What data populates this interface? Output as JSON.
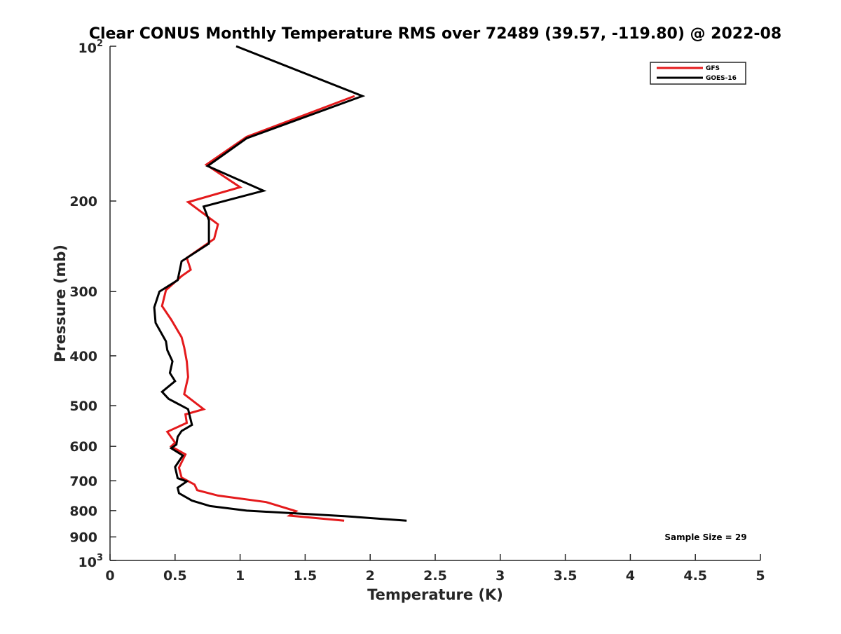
{
  "chart_data": {
    "type": "line",
    "title": "Clear CONUS Monthly Temperature RMS over 72489 (39.57, -119.80) @ 2022-08",
    "xlabel": "Temperature (K)",
    "ylabel": "Pressure (mb)",
    "xlim": [
      0,
      5
    ],
    "ylim": [
      1000,
      100
    ],
    "yscale": "log",
    "y_reversed": true,
    "x_ticks": [
      "0",
      "0.5",
      "1",
      "1.5",
      "2",
      "2.5",
      "3",
      "3.5",
      "4",
      "4.5",
      "5"
    ],
    "y_ticks": [
      {
        "value": 100,
        "base": "10",
        "exp": "2"
      },
      {
        "value": 200,
        "label": "200"
      },
      {
        "value": 300,
        "label": "300"
      },
      {
        "value": 400,
        "label": "400"
      },
      {
        "value": 500,
        "label": "500"
      },
      {
        "value": 600,
        "label": "600"
      },
      {
        "value": 700,
        "label": "700"
      },
      {
        "value": 800,
        "label": "800"
      },
      {
        "value": 900,
        "label": "900"
      },
      {
        "value": 1000,
        "base": "10",
        "exp": "3"
      }
    ],
    "grid": false,
    "legend_position": "top-right",
    "annotation": "Sample Size = 29",
    "series": [
      {
        "name": "GFS",
        "color": "#e41a1c",
        "points": [
          [
            1.88,
            125
          ],
          [
            1.05,
            150
          ],
          [
            0.74,
            170
          ],
          [
            1.0,
            188
          ],
          [
            0.6,
            201
          ],
          [
            0.83,
            222
          ],
          [
            0.8,
            237
          ],
          [
            0.59,
            258
          ],
          [
            0.62,
            272
          ],
          [
            0.55,
            280
          ],
          [
            0.43,
            298
          ],
          [
            0.4,
            320
          ],
          [
            0.47,
            340
          ],
          [
            0.55,
            368
          ],
          [
            0.57,
            385
          ],
          [
            0.59,
            410
          ],
          [
            0.6,
            440
          ],
          [
            0.57,
            475
          ],
          [
            0.72,
            508
          ],
          [
            0.58,
            520
          ],
          [
            0.59,
            540
          ],
          [
            0.44,
            562
          ],
          [
            0.5,
            590
          ],
          [
            0.47,
            600
          ],
          [
            0.58,
            622
          ],
          [
            0.53,
            660
          ],
          [
            0.55,
            690
          ],
          [
            0.65,
            712
          ],
          [
            0.67,
            730
          ],
          [
            0.83,
            748
          ],
          [
            1.2,
            770
          ],
          [
            1.43,
            802
          ],
          [
            1.38,
            818
          ],
          [
            1.8,
            837
          ]
        ]
      },
      {
        "name": "GOES-16",
        "color": "#000000",
        "points": [
          [
            0.97,
            100
          ],
          [
            1.94,
            125
          ],
          [
            1.05,
            151
          ],
          [
            0.75,
            171
          ],
          [
            1.18,
            191
          ],
          [
            0.72,
            205
          ],
          [
            0.76,
            218
          ],
          [
            0.76,
            242
          ],
          [
            0.55,
            262
          ],
          [
            0.52,
            285
          ],
          [
            0.38,
            300
          ],
          [
            0.34,
            322
          ],
          [
            0.35,
            345
          ],
          [
            0.43,
            375
          ],
          [
            0.44,
            390
          ],
          [
            0.48,
            410
          ],
          [
            0.46,
            432
          ],
          [
            0.5,
            448
          ],
          [
            0.4,
            470
          ],
          [
            0.45,
            485
          ],
          [
            0.6,
            508
          ],
          [
            0.61,
            520
          ],
          [
            0.63,
            545
          ],
          [
            0.55,
            560
          ],
          [
            0.52,
            575
          ],
          [
            0.51,
            595
          ],
          [
            0.47,
            605
          ],
          [
            0.56,
            625
          ],
          [
            0.5,
            658
          ],
          [
            0.52,
            692
          ],
          [
            0.59,
            702
          ],
          [
            0.52,
            722
          ],
          [
            0.53,
            740
          ],
          [
            0.63,
            765
          ],
          [
            0.77,
            784
          ],
          [
            1.05,
            800
          ],
          [
            1.8,
            820
          ],
          [
            2.28,
            837
          ]
        ]
      }
    ]
  }
}
